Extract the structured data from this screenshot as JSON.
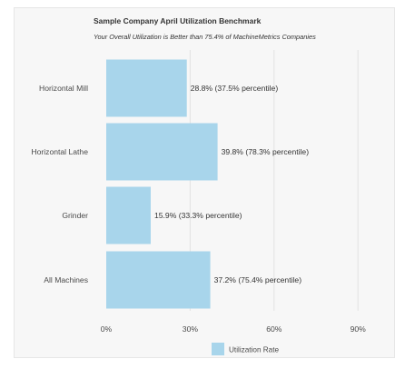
{
  "chart_data": {
    "type": "bar",
    "orientation": "horizontal",
    "title": "Sample Company April Utilization Benchmark",
    "subtitle": "Your Overall Utilization is Better than 75.4% of MachineMetrics Companies",
    "categories": [
      "Horizontal Mill",
      "Horizontal Lathe",
      "Grinder",
      "All Machines"
    ],
    "series": [
      {
        "name": "Utilization Rate",
        "values": [
          28.8,
          39.8,
          15.9,
          37.2
        ],
        "labels": [
          "28.8% (37.5% percentile)",
          "39.8% (78.3% percentile)",
          "15.9% (33.3% percentile)",
          "37.2% (75.4% percentile)"
        ]
      }
    ],
    "xlim": [
      0,
      100
    ],
    "xticks": [
      0,
      30,
      60,
      90
    ],
    "xtick_labels": [
      "0%",
      "30%",
      "60%",
      "90%"
    ],
    "grid": true,
    "legend": "bottom",
    "colors": {
      "bar": "#a8d5eb",
      "grid": "#e3e3e3"
    }
  }
}
